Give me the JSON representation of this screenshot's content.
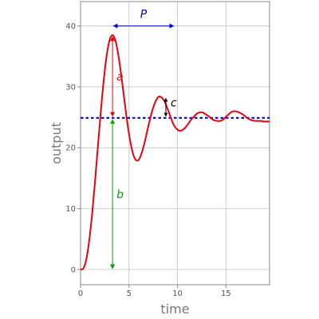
{
  "chart_data": {
    "type": "line",
    "title": "",
    "xlabel": "time",
    "ylabel": "output",
    "xlim": [
      0,
      19.5
    ],
    "ylim": [
      -2.5,
      44
    ],
    "grid": true,
    "x_ticks": [
      0,
      5,
      10,
      15
    ],
    "y_ticks": [
      0,
      10,
      20,
      30,
      40
    ],
    "x_tick_labels": [
      "0",
      "5",
      "10",
      "15"
    ],
    "y_tick_labels": [
      "0",
      "10",
      "20",
      "30",
      "40"
    ],
    "colors": {
      "response": "#e8000b",
      "steady_state": "#0000e0",
      "arrow_a": "#e8000b",
      "arrow_b": "#00a000",
      "arrow_c": "#000000",
      "arrow_p": "#0000e0",
      "grid": "#cccccc",
      "frame": "#888888"
    },
    "series": [
      {
        "x": [
          0,
          0.3,
          0.6,
          0.9,
          1.2,
          1.5,
          1.8,
          2.1,
          2.4,
          2.7,
          3.0,
          3.3,
          3.6,
          3.9,
          4.2,
          4.5,
          4.8,
          5.1,
          5.4,
          5.7,
          6.0,
          6.3,
          6.6,
          6.9,
          7.2,
          7.5,
          7.8,
          8.1,
          8.4,
          8.7,
          9.0,
          9.3,
          9.6,
          9.9,
          10.2,
          10.5,
          10.8,
          11.1,
          11.4,
          11.7,
          12.0,
          12.3,
          12.6,
          12.9,
          13.2,
          13.5,
          13.8,
          14.1,
          14.4,
          14.7,
          15.0,
          15.3,
          15.6,
          15.9,
          16.2,
          16.5,
          16.8,
          17.1,
          17.4,
          17.7,
          18.0,
          18.3,
          18.6,
          18.9,
          19.2,
          19.5
        ],
        "values": [
          0,
          0.2,
          1.7,
          4.8,
          9.2,
          14.6,
          20.4,
          26.1,
          31.2,
          35.2,
          37.7,
          38.5,
          37.6,
          35.2,
          31.9,
          28.1,
          24.4,
          21.3,
          19.1,
          18.0,
          18.0,
          19.1,
          20.8,
          22.9,
          24.9,
          26.6,
          27.8,
          28.4,
          28.2,
          27.5,
          26.3,
          25.0,
          23.8,
          23.1,
          22.8,
          22.9,
          23.3,
          23.9,
          24.6,
          25.1,
          25.6,
          25.8,
          25.8,
          25.5,
          25.2,
          24.8,
          24.5,
          24.4,
          24.4,
          24.6,
          25.1,
          25.5,
          25.9,
          26.0,
          25.9,
          25.7,
          25.4,
          25.0,
          24.7,
          24.5,
          24.4,
          24.4,
          24.4,
          24.3,
          24.3,
          24.3
        ]
      }
    ],
    "steady_state": {
      "y": 24.9,
      "x_range": [
        0,
        19.5
      ]
    },
    "annotations": [
      {
        "label": "a",
        "kind": "overshoot",
        "x": 3.3,
        "y_from": 38.5,
        "y_to": 24.9
      },
      {
        "label": "b",
        "kind": "steady-state value",
        "x": 3.3,
        "y_from": 24.9,
        "y_to": 0
      },
      {
        "label": "c",
        "kind": "second peak overshoot",
        "x": 8.8,
        "y_from": 28.4,
        "y_to": 24.9
      },
      {
        "label": "P",
        "kind": "period",
        "x_from": 3.3,
        "x_to": 9.7,
        "y": 40
      }
    ]
  }
}
